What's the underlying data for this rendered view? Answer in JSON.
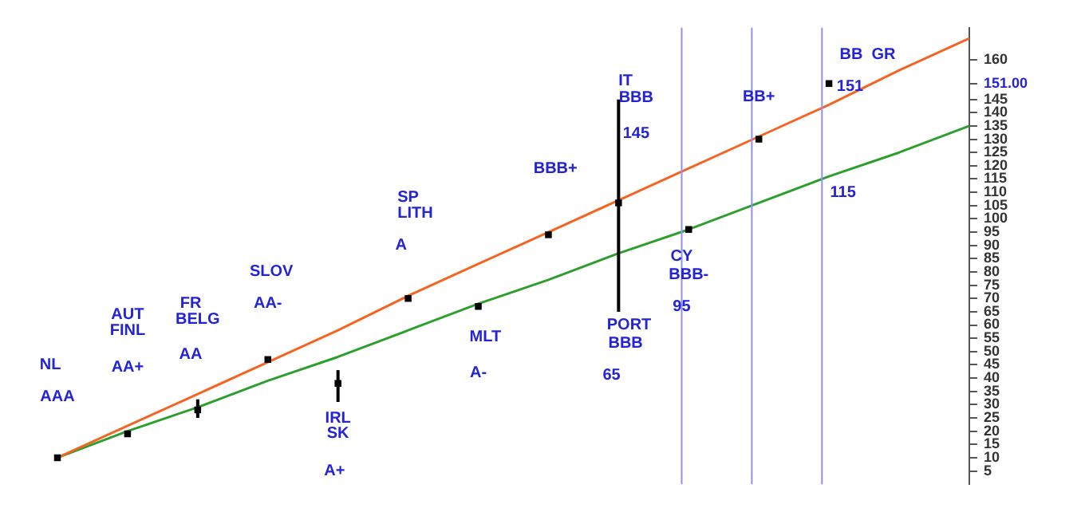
{
  "chart_data": {
    "type": "line",
    "categories": [
      null,
      null,
      null,
      null,
      null,
      null,
      null,
      null,
      null,
      null,
      null,
      null,
      null,
      null
    ],
    "ylim": [
      0,
      172
    ],
    "yticks": [
      5,
      10,
      15,
      20,
      25,
      30,
      35,
      40,
      45,
      50,
      55,
      60,
      65,
      70,
      75,
      80,
      85,
      90,
      95,
      100,
      105,
      110,
      115,
      120,
      125,
      130,
      135,
      140,
      145,
      {
        "value": 151,
        "label": "151.00"
      },
      160
    ],
    "tick_labels": "y",
    "grid": false,
    "legend": false,
    "series": [
      {
        "type": "scatter",
        "color": "#000000",
        "marker": "square",
        "values": [
          10,
          19,
          28,
          47,
          38,
          70,
          67,
          94,
          106,
          96,
          130,
          151,
          null,
          null
        ],
        "errors": [
          null,
          null,
          [
            25,
            32
          ],
          null,
          [
            31,
            43
          ],
          null,
          null,
          null,
          [
            65,
            145
          ],
          null,
          null,
          null,
          null,
          null
        ]
      },
      {
        "color": "#f26522",
        "marker": "none",
        "values": [
          10,
          22,
          34,
          46,
          58,
          71,
          83,
          95,
          107,
          119,
          131,
          143,
          156,
          168
        ]
      },
      {
        "color": "#2e9e2e",
        "marker": "none",
        "values": [
          10,
          20,
          29,
          39,
          48,
          58,
          68,
          77,
          87,
          96,
          106,
          116,
          125,
          135
        ]
      }
    ],
    "annotations": [
      "NL",
      "AAA",
      "AUT",
      "FINL",
      "AA+",
      "FR",
      "BELG",
      "AA",
      "SLOV",
      "AA-",
      "IRL",
      "SK",
      "A+",
      "SP",
      "LITH",
      "A",
      "MLT",
      "A-",
      "BBB+",
      "IT",
      "BBB",
      "145",
      "PORT",
      "BBB",
      "65",
      "CY",
      "BBB-",
      "95",
      "BB+",
      "BB  GR",
      "151",
      "115"
    ]
  }
}
